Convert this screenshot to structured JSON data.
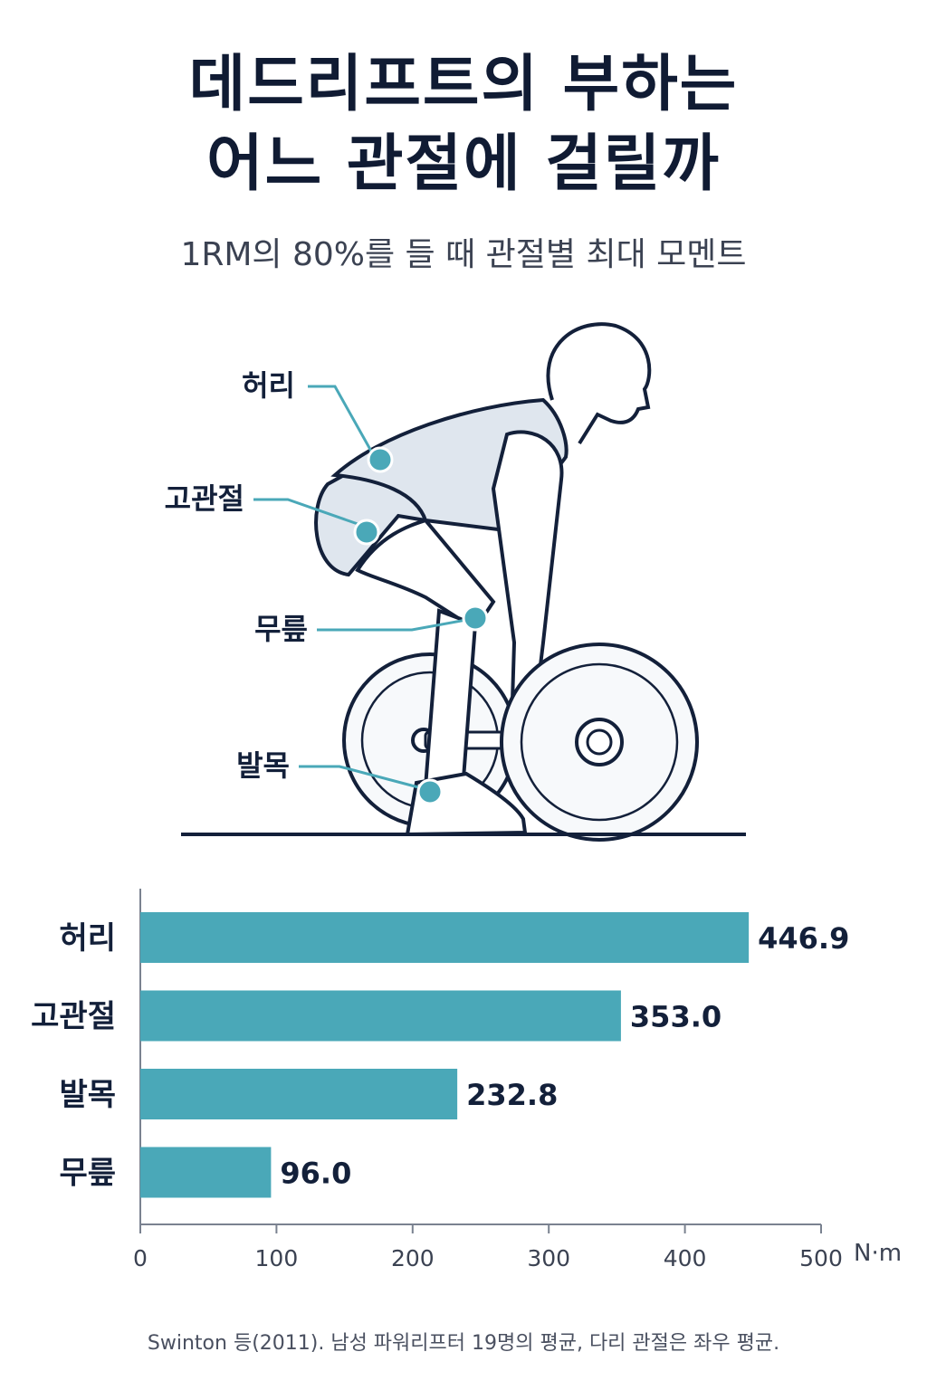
{
  "header": {
    "title_line1": "데드리프트의 부하는",
    "title_line2": "어느 관절에 걸릴까",
    "subtitle": "1RM의 80%를 들 때 관절별 최대 모멘트"
  },
  "figure": {
    "joint_labels": [
      "허리",
      "고관절",
      "무릎",
      "발목"
    ]
  },
  "chart_data": {
    "type": "bar",
    "orientation": "horizontal",
    "categories": [
      "허리",
      "고관절",
      "발목",
      "무릎"
    ],
    "values": [
      446.9,
      353.0,
      232.8,
      96.0
    ],
    "value_labels": [
      "446.9",
      "353.0",
      "232.8",
      "96.0"
    ],
    "xlim": [
      0,
      500
    ],
    "xticks": [
      0,
      100,
      200,
      300,
      400,
      500
    ],
    "xunit": "N·m",
    "bar_color": "#4aa8b8"
  },
  "footer": {
    "source": "Swinton 등(2011). 남성 파워리프터 19명의 평균, 다리 관절은 좌우 평균."
  },
  "colors": {
    "accent": "#4aa8b8",
    "title": "#101b33",
    "line": "#13203a"
  }
}
